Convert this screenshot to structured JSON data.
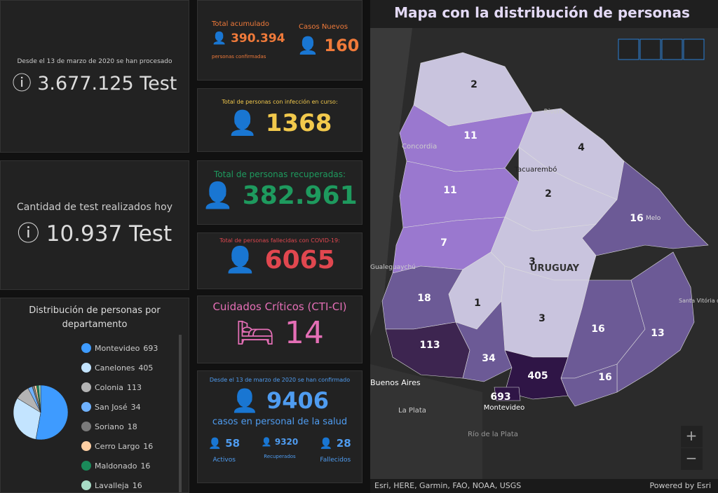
{
  "panels": {
    "tests_total": {
      "label": "Desde el 13 de marzo de 2020 se han procesado",
      "value": "3.677.125 Test"
    },
    "tests_today": {
      "label": "Cantidad de test realizados hoy",
      "value": "10.937 Test"
    },
    "confirmed": {
      "label": "Total acumulado",
      "value": "390.394",
      "sub": "personas confirmadas",
      "new_label": "Casos Nuevos",
      "new_value": "160"
    },
    "active": {
      "label": "Total de personas con infección en curso:",
      "value": "1368"
    },
    "recovered": {
      "label": "Total de personas recuperadas:",
      "value": "382.961"
    },
    "deceased": {
      "label": "Total de personas fallecidas con COVID-19:",
      "value": "6065"
    },
    "critical": {
      "label": "Cuidados Críticos (CTI-CI)",
      "value": "14"
    },
    "health": {
      "label": "Desde el 13 de marzo de 2020 se han confirmado",
      "value": "9406",
      "sub": "casos en personal de la salud",
      "stats": [
        {
          "value": "58",
          "label": "Activos"
        },
        {
          "value": "9320",
          "label": "Recuperados"
        },
        {
          "value": "28",
          "label": "Fallecidos"
        }
      ]
    }
  },
  "chart_data": {
    "type": "pie",
    "title": "Distribución de personas por departamento",
    "categories": [
      "Montevideo",
      "Canelones",
      "Colonia",
      "San José",
      "Soriano",
      "Cerro Largo",
      "Maldonado",
      "Lavalleja"
    ],
    "values": [
      693,
      405,
      113,
      34,
      18,
      16,
      16,
      16
    ],
    "colors": [
      "#3e9bff",
      "#c3e4ff",
      "#b4b4b4",
      "#6fb2ff",
      "#7a7a7a",
      "#ffcfa3",
      "#1a8a5a",
      "#a8dcc6"
    ]
  },
  "map": {
    "title": "Mapa con la distribución de personas",
    "department_values": [
      2,
      11,
      4,
      11,
      2,
      16,
      7,
      3,
      18,
      1,
      3,
      16,
      13,
      113,
      34,
      405,
      16,
      693
    ],
    "places": [
      "Concordia",
      "Rivera",
      "Tacuarembó",
      "URUGUAY",
      "Melo",
      "Gualeguaychú",
      "Buenos Aires",
      "La Plata",
      "Montevideo",
      "Santa Vitória do Palmar",
      "Río de la Plata"
    ],
    "attribution": "Esri, HERE, Garmin, FAO, NOAA, USGS",
    "powered": "Powered by Esri"
  }
}
